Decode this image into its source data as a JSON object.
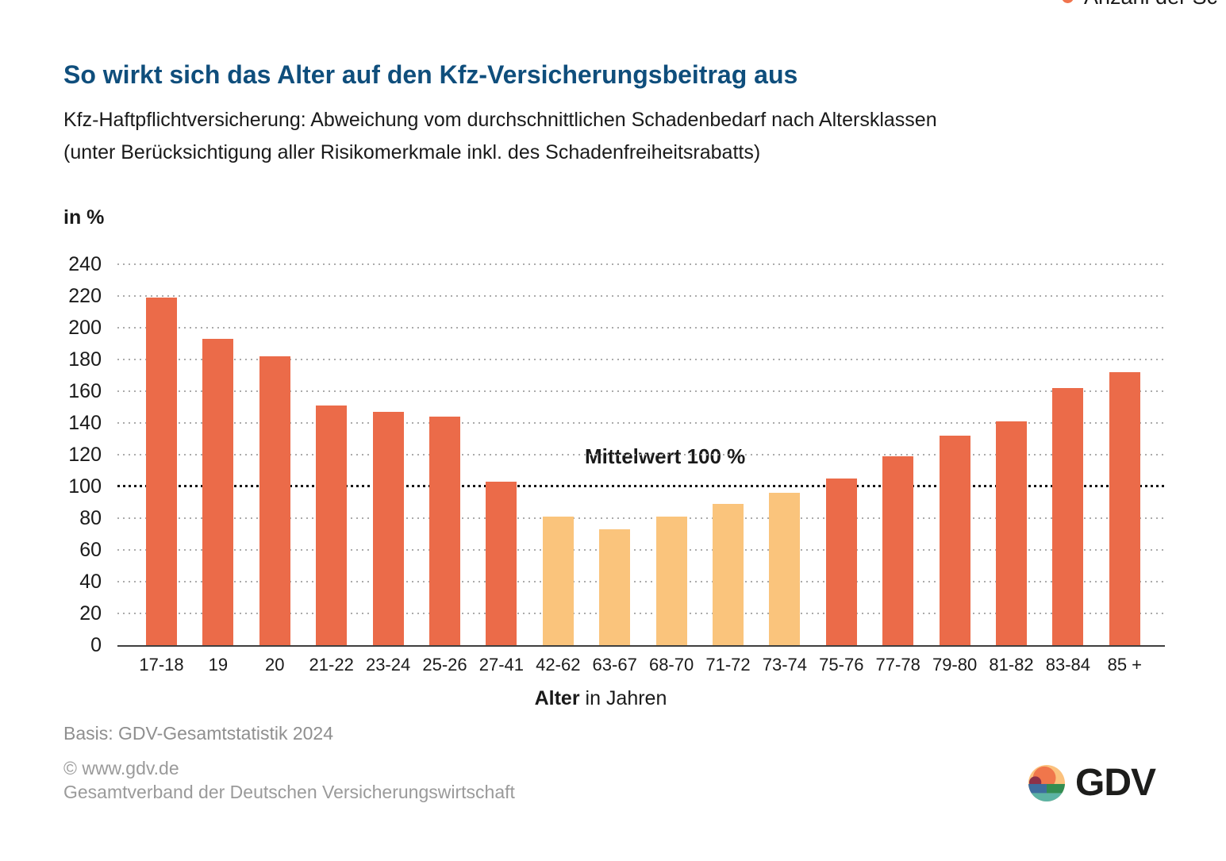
{
  "clipped_legend": {
    "label": "Anzahl der Sc",
    "dot_color": "#f0744e"
  },
  "header": {
    "title": "So wirkt sich das Alter auf den Kfz-Versicherungsbeitrag aus",
    "subtitle_line1": "Kfz-Haftpflichtversicherung: Abweichung vom durchschnittlichen Schadenbedarf nach Altersklassen",
    "subtitle_line2": "(unter Berücksichtigung aller Risikomerkmale inkl. des Schadenfreiheitsrabatts)"
  },
  "chart_data": {
    "type": "bar",
    "title": "So wirkt sich das Alter auf den Kfz-Versicherungsbeitrag aus",
    "unit_label": "in %",
    "categories": [
      "17-18",
      "19",
      "20",
      "21-22",
      "23-24",
      "25-26",
      "27-41",
      "42-62",
      "63-67",
      "68-70",
      "71-72",
      "73-74",
      "75-76",
      "77-78",
      "79-80",
      "81-82",
      "83-84",
      "85 +"
    ],
    "values": [
      219,
      193,
      182,
      151,
      147,
      144,
      103,
      81,
      73,
      81,
      89,
      96,
      105,
      119,
      132,
      141,
      162,
      172
    ],
    "ylim": [
      0,
      240
    ],
    "ytick_step": 20,
    "grid": "dotted horizontal",
    "mean_value": 100,
    "mean_annotation": "Mittelwert 100 %",
    "xlabel_bold": "Alter",
    "xlabel_rest": " in Jahren",
    "colors": {
      "above_mean": "#eb6b49",
      "below_mean": "#fac47c"
    }
  },
  "footer": {
    "basis": "Basis: GDV-Gesamtstatistik 2024",
    "copyright": "© www.gdv.de",
    "org": "Gesamtverband der Deutschen Versicherungswirtschaft",
    "logo_text": "GDV"
  }
}
